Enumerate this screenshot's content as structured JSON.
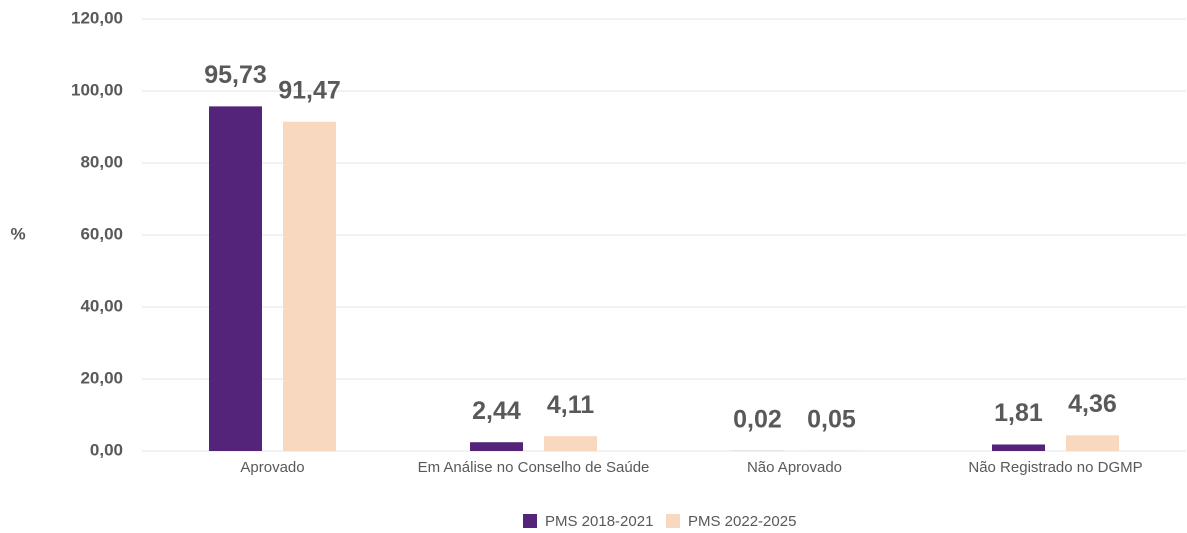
{
  "chart_data": {
    "type": "bar",
    "y_label": "%",
    "categories": [
      "Aprovado",
      "Em Análise no Conselho de Saúde",
      "Não Aprovado",
      "Não Registrado no DGMP"
    ],
    "series": [
      {
        "name": "PMS 2018-2021",
        "color": "#54247a",
        "values": [
          95.73,
          2.44,
          0.02,
          1.81
        ],
        "value_labels": [
          "95,73",
          "2,44",
          "0,02",
          "1,81"
        ]
      },
      {
        "name": "PMS 2022-2025",
        "color": "#f9d8c0",
        "values": [
          91.47,
          4.11,
          0.05,
          4.36
        ],
        "value_labels": [
          "91,47",
          "4,11",
          "0,05",
          "4,36"
        ]
      }
    ],
    "ylim": [
      0,
      120
    ],
    "yticks": [
      {
        "value": 0,
        "label": "0,00"
      },
      {
        "value": 20,
        "label": "20,00"
      },
      {
        "value": 40,
        "label": "40,00"
      },
      {
        "value": 60,
        "label": "60,00"
      },
      {
        "value": 80,
        "label": "80,00"
      },
      {
        "value": 100,
        "label": "100,00"
      },
      {
        "value": 120,
        "label": "120,00"
      }
    ],
    "grid": true,
    "legend": "bottom"
  }
}
